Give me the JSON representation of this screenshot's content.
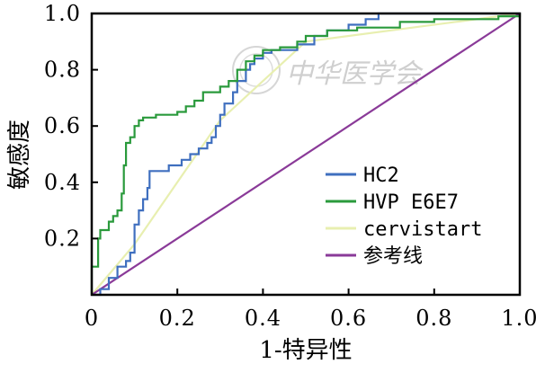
{
  "chart_data": {
    "type": "line",
    "xlabel": "1-特异性",
    "ylabel": "敏感度",
    "xlim": [
      0,
      1
    ],
    "ylim": [
      0,
      1
    ],
    "x_ticks": [
      "0",
      "0.2",
      "0.4",
      "0.6",
      "0.8",
      "1.0"
    ],
    "y_ticks": [
      "0.2",
      "0.4",
      "0.6",
      "0.8",
      "1.0"
    ],
    "x_tick_values": [
      0,
      0.2,
      0.4,
      0.6,
      0.8,
      1.0
    ],
    "y_tick_values": [
      0.2,
      0.4,
      0.6,
      0.8,
      1.0
    ],
    "grid": false,
    "legend_position": "bottom-right",
    "watermark": "中华医学会",
    "series": [
      {
        "name": "HC2",
        "color": "#3f6fbf",
        "step": true,
        "points": [
          [
            0,
            0
          ],
          [
            0.02,
            0
          ],
          [
            0.02,
            0.02
          ],
          [
            0.04,
            0.02
          ],
          [
            0.04,
            0.06
          ],
          [
            0.06,
            0.06
          ],
          [
            0.06,
            0.1
          ],
          [
            0.08,
            0.1
          ],
          [
            0.08,
            0.12
          ],
          [
            0.09,
            0.12
          ],
          [
            0.09,
            0.15
          ],
          [
            0.1,
            0.15
          ],
          [
            0.1,
            0.25
          ],
          [
            0.11,
            0.25
          ],
          [
            0.11,
            0.3
          ],
          [
            0.12,
            0.3
          ],
          [
            0.12,
            0.34
          ],
          [
            0.13,
            0.34
          ],
          [
            0.13,
            0.38
          ],
          [
            0.135,
            0.38
          ],
          [
            0.135,
            0.44
          ],
          [
            0.18,
            0.44
          ],
          [
            0.18,
            0.46
          ],
          [
            0.21,
            0.46
          ],
          [
            0.21,
            0.48
          ],
          [
            0.23,
            0.48
          ],
          [
            0.23,
            0.5
          ],
          [
            0.25,
            0.5
          ],
          [
            0.25,
            0.52
          ],
          [
            0.27,
            0.52
          ],
          [
            0.27,
            0.54
          ],
          [
            0.28,
            0.54
          ],
          [
            0.28,
            0.56
          ],
          [
            0.29,
            0.56
          ],
          [
            0.29,
            0.6
          ],
          [
            0.3,
            0.6
          ],
          [
            0.3,
            0.64
          ],
          [
            0.31,
            0.64
          ],
          [
            0.31,
            0.68
          ],
          [
            0.33,
            0.68
          ],
          [
            0.33,
            0.72
          ],
          [
            0.34,
            0.72
          ],
          [
            0.34,
            0.76
          ],
          [
            0.36,
            0.76
          ],
          [
            0.36,
            0.8
          ],
          [
            0.37,
            0.8
          ],
          [
            0.37,
            0.82
          ],
          [
            0.38,
            0.82
          ],
          [
            0.38,
            0.84
          ],
          [
            0.4,
            0.84
          ],
          [
            0.4,
            0.86
          ],
          [
            0.42,
            0.86
          ],
          [
            0.42,
            0.87
          ],
          [
            0.48,
            0.87
          ],
          [
            0.48,
            0.89
          ],
          [
            0.52,
            0.89
          ],
          [
            0.52,
            0.92
          ],
          [
            0.55,
            0.92
          ],
          [
            0.55,
            0.94
          ],
          [
            0.6,
            0.94
          ],
          [
            0.6,
            0.96
          ],
          [
            0.64,
            0.96
          ],
          [
            0.64,
            0.98
          ],
          [
            0.67,
            0.98
          ],
          [
            0.67,
            1.0
          ],
          [
            1.0,
            1.0
          ]
        ]
      },
      {
        "name": "HVP E6E7",
        "color": "#2a9a3c",
        "step": true,
        "points": [
          [
            0,
            0
          ],
          [
            0,
            0.1
          ],
          [
            0.015,
            0.1
          ],
          [
            0.015,
            0.2
          ],
          [
            0.02,
            0.2
          ],
          [
            0.02,
            0.23
          ],
          [
            0.04,
            0.23
          ],
          [
            0.04,
            0.26
          ],
          [
            0.05,
            0.26
          ],
          [
            0.05,
            0.28
          ],
          [
            0.06,
            0.28
          ],
          [
            0.06,
            0.3
          ],
          [
            0.07,
            0.3
          ],
          [
            0.07,
            0.36
          ],
          [
            0.075,
            0.36
          ],
          [
            0.075,
            0.46
          ],
          [
            0.08,
            0.46
          ],
          [
            0.08,
            0.54
          ],
          [
            0.09,
            0.54
          ],
          [
            0.09,
            0.56
          ],
          [
            0.1,
            0.56
          ],
          [
            0.1,
            0.6
          ],
          [
            0.11,
            0.6
          ],
          [
            0.11,
            0.62
          ],
          [
            0.12,
            0.62
          ],
          [
            0.12,
            0.63
          ],
          [
            0.15,
            0.63
          ],
          [
            0.15,
            0.64
          ],
          [
            0.2,
            0.64
          ],
          [
            0.2,
            0.65
          ],
          [
            0.22,
            0.65
          ],
          [
            0.22,
            0.67
          ],
          [
            0.24,
            0.67
          ],
          [
            0.24,
            0.69
          ],
          [
            0.26,
            0.69
          ],
          [
            0.26,
            0.72
          ],
          [
            0.3,
            0.72
          ],
          [
            0.3,
            0.74
          ],
          [
            0.32,
            0.74
          ],
          [
            0.32,
            0.76
          ],
          [
            0.34,
            0.76
          ],
          [
            0.34,
            0.8
          ],
          [
            0.36,
            0.8
          ],
          [
            0.36,
            0.83
          ],
          [
            0.38,
            0.83
          ],
          [
            0.38,
            0.85
          ],
          [
            0.4,
            0.85
          ],
          [
            0.4,
            0.87
          ],
          [
            0.44,
            0.87
          ],
          [
            0.44,
            0.88
          ],
          [
            0.48,
            0.88
          ],
          [
            0.48,
            0.9
          ],
          [
            0.5,
            0.9
          ],
          [
            0.5,
            0.92
          ],
          [
            0.55,
            0.92
          ],
          [
            0.55,
            0.94
          ],
          [
            0.62,
            0.94
          ],
          [
            0.62,
            0.95
          ],
          [
            0.72,
            0.95
          ],
          [
            0.72,
            0.97
          ],
          [
            0.8,
            0.97
          ],
          [
            0.8,
            0.98
          ],
          [
            0.95,
            0.98
          ],
          [
            0.95,
            0.99
          ],
          [
            1.0,
            0.99
          ],
          [
            1.0,
            1.0
          ]
        ]
      },
      {
        "name": "cervistart",
        "color": "#e8efb0",
        "step": false,
        "points": [
          [
            0,
            0
          ],
          [
            0.1,
            0.18
          ],
          [
            0.2,
            0.4
          ],
          [
            0.3,
            0.62
          ],
          [
            0.5,
            0.9
          ],
          [
            1.0,
            1.0
          ]
        ]
      },
      {
        "name": "参考线",
        "color": "#8a3a98",
        "step": false,
        "points": [
          [
            0,
            0
          ],
          [
            1,
            1
          ]
        ]
      }
    ]
  }
}
